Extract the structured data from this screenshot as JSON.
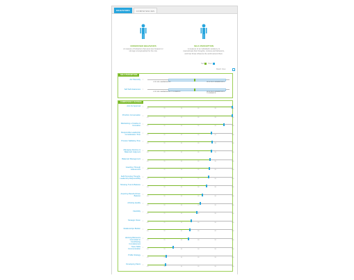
{
  "tabs": [
    "Behaviors",
    "Competencies"
  ],
  "figures": [
    {
      "title": "Underused Behaviors",
      "desc": "A measure of behaviors that were less frequent or strongly conceptualized for the role."
    },
    {
      "title": "Self-Perception",
      "desc": "A measure of an individual's tendency to overestimate their thoughts, motives and behaviors, and how those influence the world around them."
    }
  ],
  "legend": {
    "self": "Self",
    "peer": "Peer",
    "colors": {
      "self": "#7ab829",
      "peer": "#27a5dd"
    }
  },
  "view_toggle": "Match View",
  "sections": {
    "top": {
      "title": "Self-Perception",
      "rows": [
        {
          "label": "Act Tolerantly",
          "left": "Low Self-Awareness",
          "right": "High Self-Awareness",
          "range": [
            0.25,
            0.96
          ],
          "mark": 0.57
        },
        {
          "label": "Self Self-Awareness",
          "left": "Low Self-Awareness Tolerance",
          "right": "High Self-Awareness Tolerance",
          "range": [
            0.25,
            0.96
          ],
          "mark": 0.57
        }
      ]
    },
    "comp": {
      "title": "Competency Ratings",
      "rows": [
        {
          "label": "Acts for Approval",
          "value": 100
        },
        {
          "label": "Prioritize Conversation",
          "value": 100
        },
        {
          "label": "Maintaining a Creative & Innovative",
          "value": 90
        },
        {
          "label": "Responsible Leadership Consideration Time",
          "value": 75
        },
        {
          "label": "Process Validating Time",
          "value": 76
        },
        {
          "label": "Managing Decisive & Balanced Judgment",
          "value": 75
        },
        {
          "label": "Balanced Management",
          "value": 74
        },
        {
          "label": "Coaching Through Assessment",
          "value": 73
        },
        {
          "label": "Self-Promoting Thought-Leadership Responsibility",
          "value": 72
        },
        {
          "label": "Showing Trust & Balance",
          "value": 70
        },
        {
          "label": "Acquiring Results-Driven Balance",
          "value": 65
        },
        {
          "label": "Advising Quality",
          "value": 62
        },
        {
          "label": "Flexibility",
          "value": 58
        },
        {
          "label": "Strategic Vision",
          "value": 52
        },
        {
          "label": "Relationships Builder",
          "value": 50
        },
        {
          "label": "Advising Behaviors Committed to Contributing Completeness",
          "value": 48
        },
        {
          "label": "Team Skills Communication",
          "value": 30
        },
        {
          "label": "Profile Strategy",
          "value": 22
        },
        {
          "label": "Developing Talent",
          "value": 21
        }
      ]
    },
    "ticks": [
      "0%",
      "20",
      "40",
      "60",
      "80",
      "100"
    ]
  }
}
